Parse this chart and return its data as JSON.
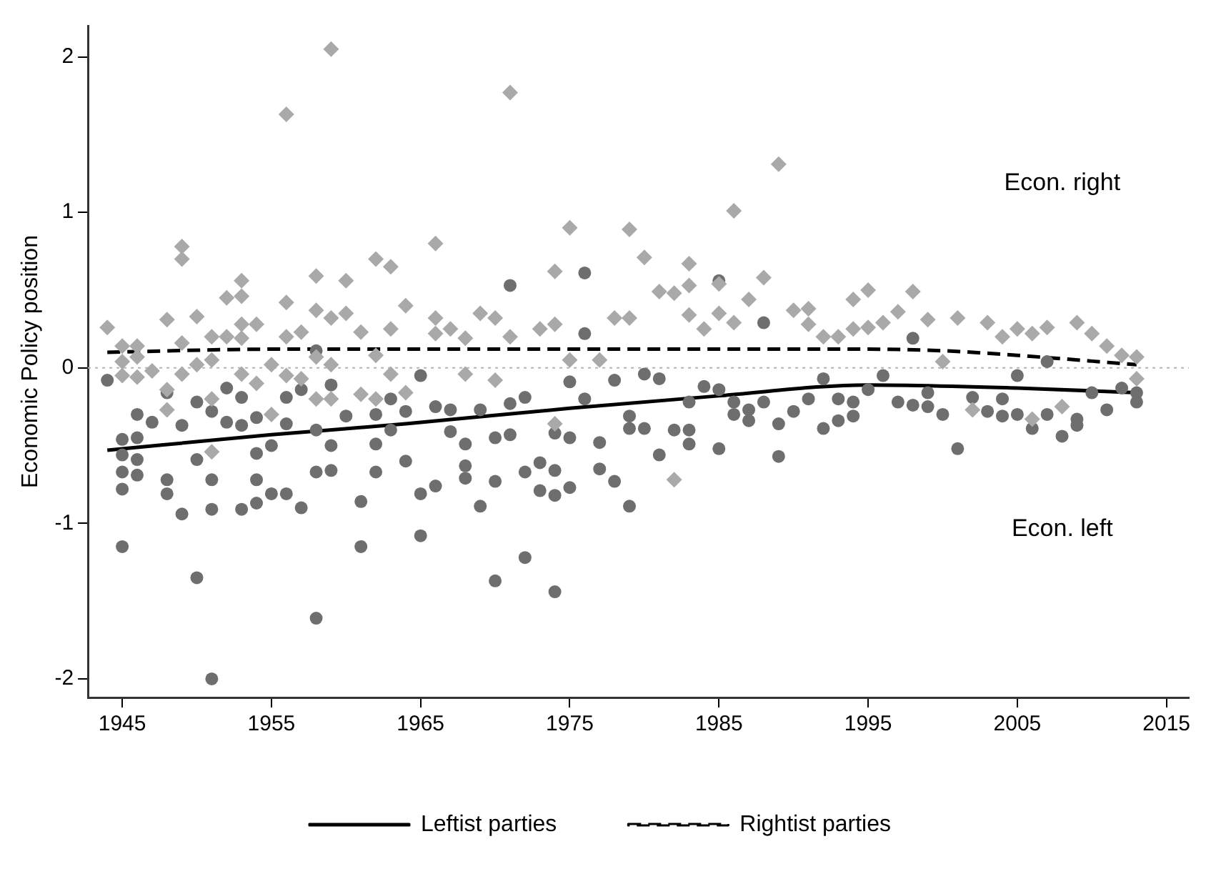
{
  "chart_data": {
    "type": "scatter",
    "ylabel": "Economic Policy position",
    "xlim": [
      1942.7,
      2016.5
    ],
    "xticks": [
      1945,
      1955,
      1965,
      1975,
      1985,
      1995,
      2005,
      2015
    ],
    "ylim": [
      -2.12,
      2.2
    ],
    "yticks": [
      -2,
      -1,
      0,
      1,
      2
    ],
    "grid": false,
    "legend": "bottom",
    "annotations": [
      "Econ. right",
      "Econ. left"
    ],
    "ref_lines": [
      {
        "axis": "y",
        "value": 0,
        "color": "#b4b4b4",
        "line_style": "dotted"
      }
    ],
    "series": [
      {
        "marker": "diamond",
        "color": "#a9a9a9",
        "x": [
          1944,
          1945,
          1945,
          1945,
          1946,
          1946,
          1946,
          1947,
          1948,
          1948,
          1948,
          1949,
          1949,
          1949,
          1949,
          1950,
          1950,
          1951,
          1951,
          1951,
          1951,
          1952,
          1952,
          1953,
          1953,
          1953,
          1953,
          1953,
          1954,
          1954,
          1955,
          1955,
          1956,
          1956,
          1956,
          1956,
          1957,
          1957,
          1958,
          1958,
          1958,
          1958,
          1959,
          1959,
          1959,
          1959,
          1960,
          1960,
          1961,
          1961,
          1962,
          1962,
          1962,
          1963,
          1963,
          1963,
          1964,
          1964,
          1966,
          1966,
          1966,
          1967,
          1968,
          1968,
          1969,
          1970,
          1970,
          1971,
          1971,
          1973,
          1974,
          1974,
          1974,
          1975,
          1975,
          1977,
          1978,
          1979,
          1979,
          1980,
          1981,
          1982,
          1982,
          1983,
          1983,
          1983,
          1984,
          1985,
          1985,
          1986,
          1986,
          1987,
          1988,
          1989,
          1990,
          1991,
          1991,
          1992,
          1993,
          1994,
          1994,
          1995,
          1995,
          1996,
          1997,
          1998,
          1999,
          2000,
          2001,
          2002,
          2003,
          2004,
          2005,
          2006,
          2006,
          2007,
          2008,
          2009,
          2010,
          2011,
          2012,
          2013,
          2013
        ],
        "values": [
          0.26,
          0.14,
          0.04,
          -0.05,
          0.14,
          -0.06,
          0.07,
          -0.02,
          0.31,
          -0.27,
          -0.14,
          0.78,
          0.7,
          0.16,
          -0.04,
          0.33,
          0.02,
          0.2,
          0.05,
          -0.54,
          -0.2,
          0.45,
          0.2,
          0.56,
          0.46,
          0.28,
          0.19,
          -0.04,
          0.28,
          -0.1,
          0.02,
          -0.3,
          1.63,
          0.42,
          0.2,
          -0.05,
          0.23,
          -0.07,
          0.59,
          0.37,
          0.07,
          -0.2,
          2.05,
          0.32,
          0.02,
          -0.2,
          0.56,
          0.35,
          0.23,
          -0.17,
          0.7,
          0.08,
          -0.2,
          0.65,
          0.25,
          -0.04,
          0.4,
          -0.16,
          0.8,
          0.32,
          0.22,
          0.25,
          0.19,
          -0.04,
          0.35,
          0.32,
          -0.08,
          1.77,
          0.2,
          0.25,
          0.62,
          0.28,
          -0.36,
          0.9,
          0.05,
          0.05,
          0.32,
          0.89,
          0.32,
          0.71,
          0.49,
          0.48,
          -0.72,
          0.67,
          0.53,
          0.34,
          0.25,
          0.54,
          0.35,
          1.01,
          0.29,
          0.44,
          0.58,
          1.31,
          0.37,
          0.38,
          0.28,
          0.2,
          0.2,
          0.44,
          0.25,
          0.5,
          0.26,
          0.29,
          0.36,
          0.49,
          0.31,
          0.04,
          0.32,
          -0.27,
          0.29,
          0.2,
          0.25,
          0.22,
          -0.33,
          0.26,
          -0.25,
          0.29,
          0.22,
          0.14,
          0.08,
          0.07,
          -0.07
        ]
      },
      {
        "marker": "circle",
        "color": "#6e6e6e",
        "x": [
          1944,
          1945,
          1945,
          1945,
          1945,
          1945,
          1946,
          1946,
          1946,
          1946,
          1947,
          1948,
          1948,
          1948,
          1949,
          1949,
          1950,
          1950,
          1950,
          1951,
          1951,
          1951,
          1951,
          1952,
          1952,
          1953,
          1953,
          1953,
          1954,
          1954,
          1954,
          1954,
          1955,
          1955,
          1956,
          1956,
          1956,
          1957,
          1957,
          1958,
          1958,
          1958,
          1958,
          1959,
          1959,
          1959,
          1960,
          1961,
          1961,
          1962,
          1962,
          1962,
          1963,
          1963,
          1964,
          1964,
          1965,
          1965,
          1965,
          1966,
          1966,
          1967,
          1967,
          1968,
          1968,
          1968,
          1969,
          1969,
          1970,
          1970,
          1970,
          1971,
          1971,
          1971,
          1972,
          1972,
          1972,
          1973,
          1973,
          1974,
          1974,
          1974,
          1974,
          1975,
          1975,
          1975,
          1976,
          1976,
          1976,
          1977,
          1977,
          1978,
          1978,
          1979,
          1979,
          1979,
          1980,
          1980,
          1981,
          1981,
          1982,
          1983,
          1983,
          1983,
          1984,
          1985,
          1985,
          1985,
          1986,
          1986,
          1987,
          1987,
          1988,
          1988,
          1989,
          1989,
          1990,
          1991,
          1992,
          1992,
          1993,
          1993,
          1994,
          1994,
          1995,
          1996,
          1997,
          1998,
          1998,
          1999,
          1999,
          2000,
          2001,
          2002,
          2003,
          2004,
          2004,
          2005,
          2005,
          2006,
          2007,
          2007,
          2008,
          2009,
          2009,
          2010,
          2011,
          2012,
          2013,
          2013
        ],
        "values": [
          -0.08,
          -0.46,
          -0.56,
          -0.67,
          -0.78,
          -1.15,
          -0.3,
          -0.45,
          -0.59,
          -0.69,
          -0.35,
          -0.16,
          -0.72,
          -0.81,
          -0.37,
          -0.94,
          -0.22,
          -0.59,
          -1.35,
          -0.28,
          -0.72,
          -0.91,
          -2.0,
          -0.13,
          -0.35,
          -0.19,
          -0.37,
          -0.91,
          -0.32,
          -0.55,
          -0.72,
          -0.87,
          -0.5,
          -0.81,
          -0.19,
          -0.36,
          -0.81,
          -0.14,
          -0.9,
          0.11,
          -0.4,
          -0.67,
          -1.61,
          -0.11,
          -0.5,
          -0.66,
          -0.31,
          -0.86,
          -1.15,
          -0.3,
          -0.49,
          -0.67,
          -0.2,
          -0.4,
          -0.28,
          -0.6,
          -0.05,
          -0.81,
          -1.08,
          -0.25,
          -0.76,
          -0.41,
          -0.27,
          -0.49,
          -0.63,
          -0.71,
          -0.89,
          -0.27,
          -0.45,
          -0.73,
          -1.37,
          0.53,
          -0.43,
          -0.23,
          -0.67,
          -1.22,
          -0.19,
          -0.61,
          -0.79,
          -0.42,
          -0.66,
          -0.82,
          -1.44,
          -0.09,
          -0.45,
          -0.77,
          0.61,
          0.22,
          -0.2,
          -0.48,
          -0.65,
          -0.08,
          -0.73,
          -0.31,
          -0.39,
          -0.89,
          -0.04,
          -0.39,
          -0.07,
          -0.56,
          -0.4,
          -0.4,
          -0.49,
          -0.22,
          -0.12,
          0.56,
          -0.52,
          -0.14,
          -0.22,
          -0.3,
          -0.34,
          -0.27,
          -0.22,
          0.29,
          -0.57,
          -0.36,
          -0.28,
          -0.2,
          -0.39,
          -0.07,
          -0.34,
          -0.2,
          -0.31,
          -0.22,
          -0.14,
          -0.05,
          -0.22,
          -0.24,
          0.19,
          -0.16,
          -0.25,
          -0.3,
          -0.52,
          -0.19,
          -0.28,
          -0.31,
          -0.2,
          -0.05,
          -0.3,
          -0.39,
          -0.3,
          0.04,
          -0.44,
          -0.37,
          -0.33,
          -0.16,
          -0.27,
          -0.13,
          -0.22,
          -0.16
        ]
      },
      {
        "type": "line",
        "name": "Leftist parties",
        "line_style": "solid",
        "color": "#000000",
        "x": [
          1944,
          1955,
          1964,
          1975,
          1985,
          1995,
          2005,
          2013
        ],
        "values": [
          -0.53,
          -0.43,
          -0.36,
          -0.26,
          -0.18,
          -0.11,
          -0.13,
          -0.16
        ]
      },
      {
        "type": "line",
        "name": "Rightist parties",
        "line_style": "dashed",
        "color": "#000000",
        "x": [
          1944,
          1955,
          1965,
          1975,
          1985,
          1995,
          2000,
          2005,
          2013
        ],
        "values": [
          0.1,
          0.12,
          0.12,
          0.12,
          0.12,
          0.12,
          0.11,
          0.08,
          0.02
        ]
      }
    ]
  }
}
